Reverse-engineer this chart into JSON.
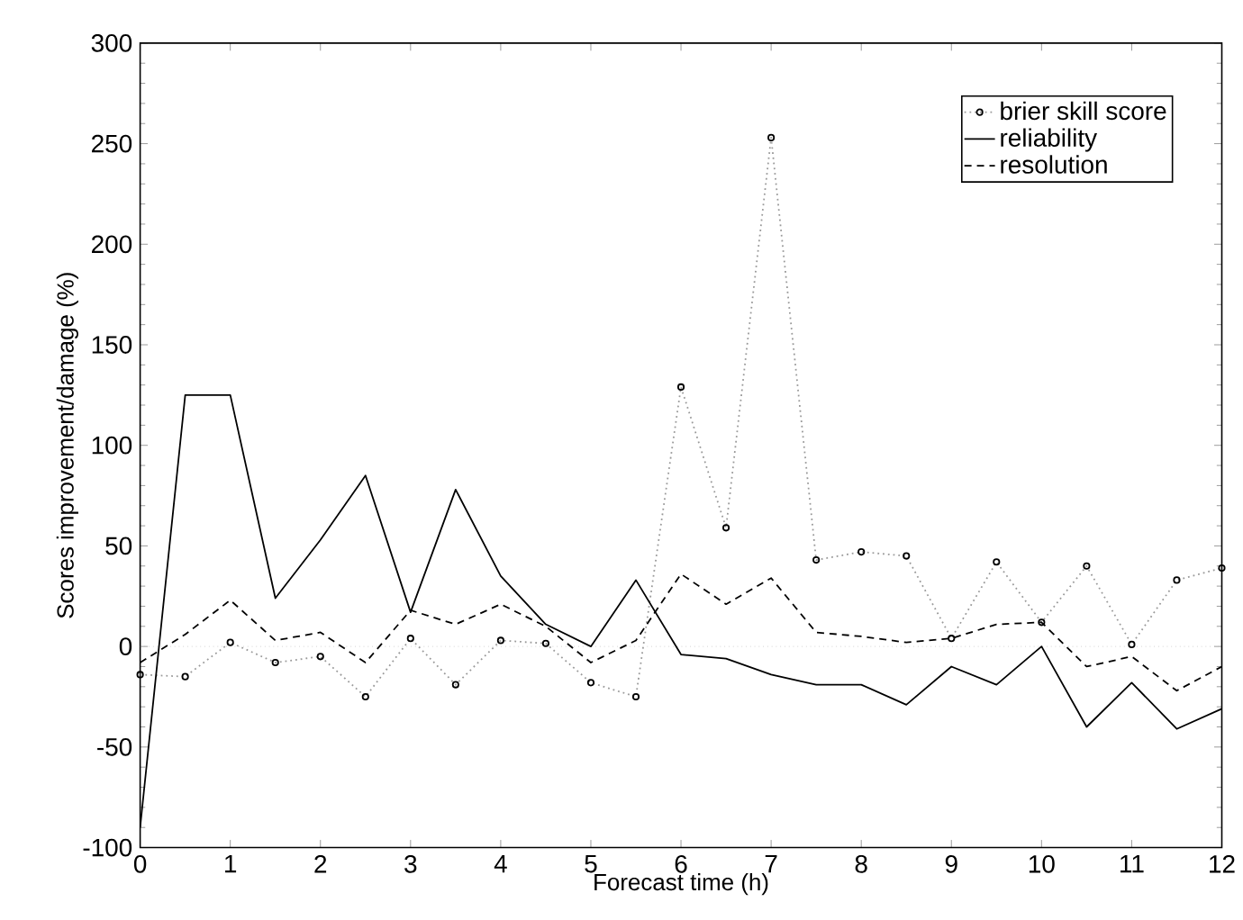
{
  "chart_data": {
    "type": "line",
    "xlabel": "Forecast time (h)",
    "ylabel": "Scores improvement/damage (%)",
    "x": [
      0,
      0.5,
      1,
      1.5,
      2,
      2.5,
      3,
      3.5,
      4,
      4.5,
      5,
      5.5,
      6,
      6.5,
      7,
      7.5,
      8,
      8.5,
      9,
      9.5,
      10,
      10.5,
      11,
      11.5,
      12
    ],
    "series": [
      {
        "name": "brier skill score",
        "color": "#999999",
        "marker": "circle",
        "line_style": "dotted",
        "values": [
          -14,
          -15,
          2,
          -8,
          -5,
          -25,
          4,
          -19,
          3,
          1.5,
          -18,
          -25,
          129,
          59,
          253,
          43,
          47,
          45,
          4,
          42,
          12,
          40,
          1,
          33,
          39
        ]
      },
      {
        "name": "reliability",
        "color": "#000000",
        "marker": "none",
        "line_style": "solid",
        "values": [
          -90,
          125,
          125,
          24,
          53,
          85,
          17,
          78,
          35,
          11,
          0,
          33,
          -4,
          -6,
          -14,
          -19,
          -19,
          -29,
          -10,
          -19,
          0,
          -40,
          -18,
          -41,
          -31
        ]
      },
      {
        "name": "resolution",
        "color": "#000000",
        "marker": "none",
        "line_style": "dashed",
        "values": [
          -8,
          6,
          23,
          3,
          7,
          -8,
          18,
          11,
          21,
          10,
          -8,
          3,
          36,
          21,
          34,
          7,
          5,
          2,
          4,
          11,
          12,
          -10,
          -5,
          -22,
          -10
        ]
      }
    ],
    "xlim": [
      0,
      12
    ],
    "ylim": [
      -100,
      300
    ],
    "xticks": [
      0,
      1,
      2,
      3,
      4,
      5,
      6,
      7,
      8,
      9,
      10,
      11,
      12
    ],
    "yticks": [
      -100,
      -50,
      0,
      50,
      100,
      150,
      200,
      250,
      300
    ],
    "ref_lines": [
      {
        "axis": "y",
        "value": 0,
        "color": "#bbbbbb",
        "line_style": "dotted"
      }
    ],
    "legend": "top right",
    "grid": false
  }
}
